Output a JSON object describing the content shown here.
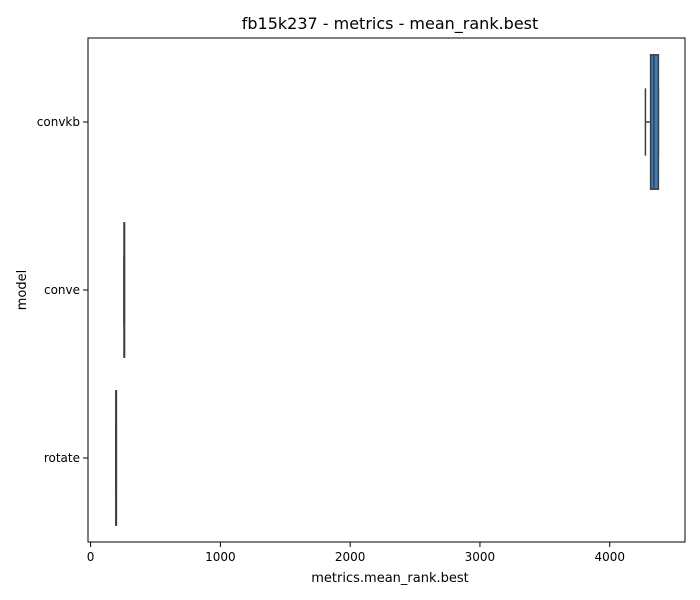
{
  "chart_data": {
    "type": "box",
    "orientation": "horizontal",
    "title": "fb15k237 - metrics - mean_rank.best",
    "xlabel": "metrics.mean_rank.best",
    "ylabel": "model",
    "xlim": [
      -20,
      4580
    ],
    "xticks": [
      0,
      1000,
      2000,
      3000,
      4000
    ],
    "categories": [
      "convkb",
      "conve",
      "rotate"
    ],
    "boxes": [
      {
        "category": "convkb",
        "min": 4275,
        "q1": 4315,
        "median": 4340,
        "q3": 4375,
        "max": 4375,
        "color": "#3a7dbf"
      },
      {
        "category": "conve",
        "min": 258,
        "q1": 258,
        "median": 258,
        "q3": 258,
        "max": 258,
        "color": "#e07b39"
      },
      {
        "category": "rotate",
        "min": 195,
        "q1": 195,
        "median": 195,
        "q3": 195,
        "max": 195,
        "color": "#3d9e47"
      }
    ],
    "grid": false,
    "legend": "none"
  }
}
